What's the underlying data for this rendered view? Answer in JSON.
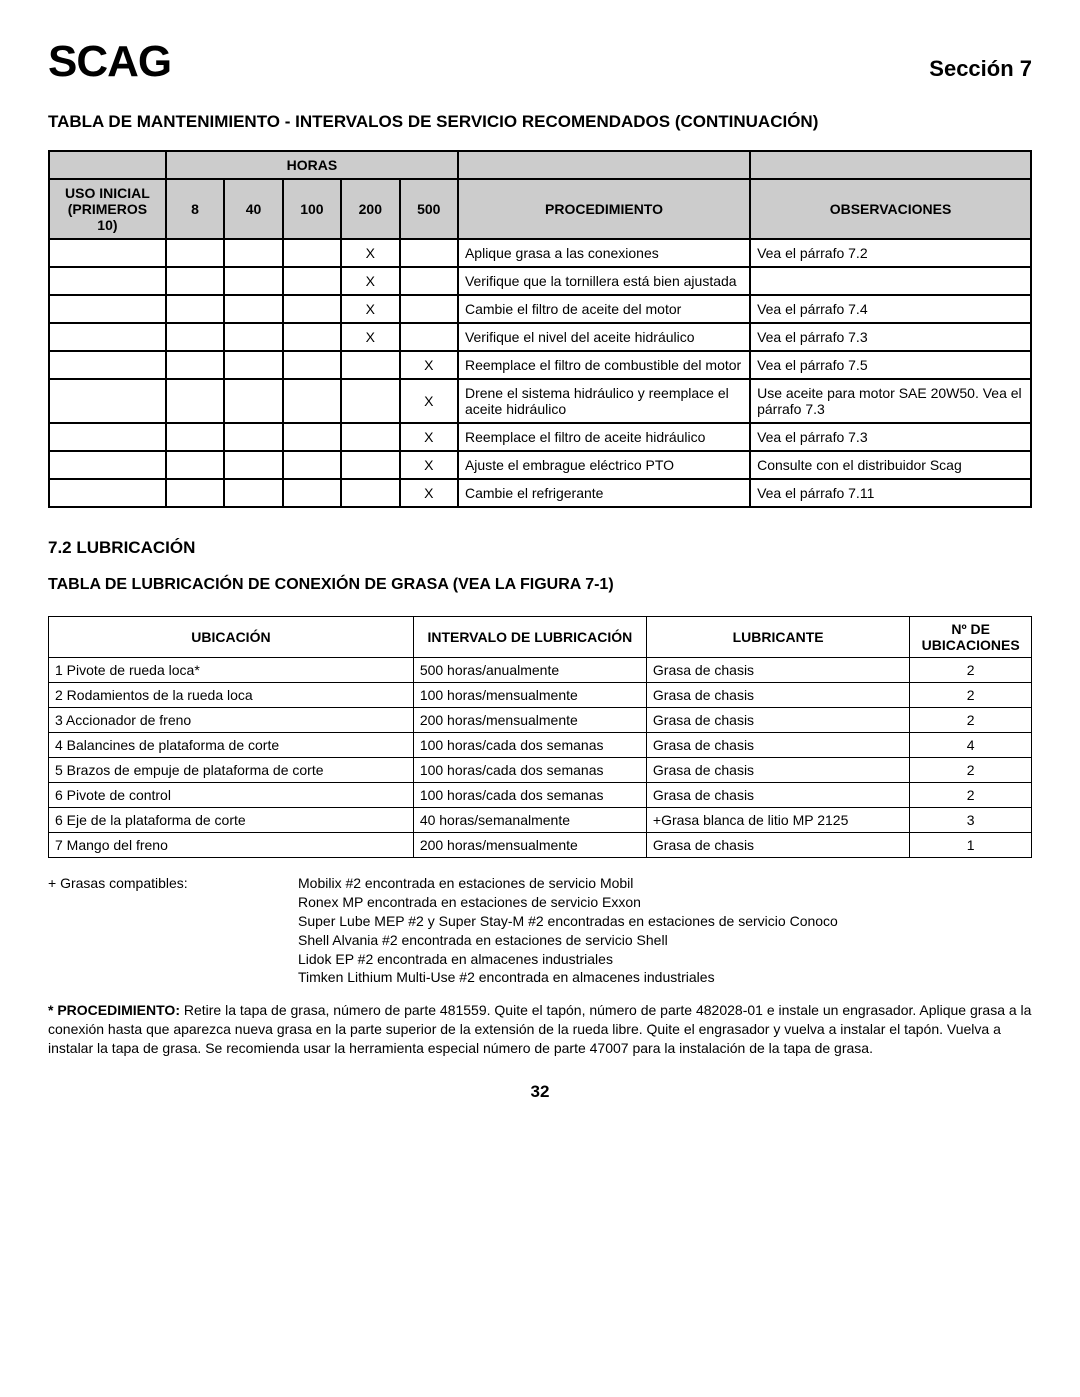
{
  "header": {
    "logo": "SCAG",
    "section": "Sección 7"
  },
  "title1": "TABLA DE MANTENIMIENTO - INTERVALOS DE SERVICIO RECOMENDADOS (CONTINUACIÓN)",
  "table1": {
    "head": {
      "horas": "HORAS",
      "uso": "USO INICIAL (PRIMEROS 10)",
      "h8": "8",
      "h40": "40",
      "h100": "100",
      "h200": "200",
      "h500": "500",
      "proc": "PROCEDIMIENTO",
      "obs": "OBSERVACIONES"
    },
    "rows": [
      {
        "h200": "X",
        "proc": "Aplique grasa a las conexiones",
        "obs": "Vea el párrafo 7.2"
      },
      {
        "h200": "X",
        "proc": "Verifique que la tornillera está bien ajustada",
        "obs": ""
      },
      {
        "h200": "X",
        "proc": "Cambie el filtro de aceite del motor",
        "obs": "Vea el párrafo 7.4"
      },
      {
        "h200": "X",
        "proc": "Verifique el nivel del aceite hidráulico",
        "obs": "Vea el párrafo 7.3"
      },
      {
        "h500": "X",
        "proc": "Reemplace el filtro de combustible del motor",
        "obs": "Vea el párrafo 7.5"
      },
      {
        "h500": "X",
        "proc": "Drene el sistema hidráulico y reemplace el aceite hidráulico",
        "obs": "Use aceite para motor SAE 20W50. Vea el párrafo 7.3"
      },
      {
        "h500": "X",
        "proc": "Reemplace el filtro de aceite hidráulico",
        "obs": "Vea el párrafo 7.3"
      },
      {
        "h500": "X",
        "proc": "Ajuste el embrague eléctrico PTO",
        "obs": "Consulte con el distribuidor Scag"
      },
      {
        "h500": "X",
        "proc": "Cambie el refrigerante",
        "obs": "Vea el párrafo 7.11"
      }
    ]
  },
  "section72": "7.2 LUBRICACIÓN",
  "title2": "TABLA DE LUBRICACIÓN DE CONEXIÓN DE GRASA (VEA LA FIGURA 7-1)",
  "table2": {
    "head": {
      "ubic": "UBICACIÓN",
      "interval": "INTERVALO DE LUBRICACIÓN",
      "lubr": "LUBRICANTE",
      "num": "Nº DE UBICACIONES"
    },
    "rows": [
      {
        "u": "1 Pivote de rueda loca*",
        "i": "500 horas/anualmente",
        "l": "Grasa de chasis",
        "n": "2"
      },
      {
        "u": "2 Rodamientos de la rueda loca",
        "i": "100 horas/mensualmente",
        "l": "Grasa de chasis",
        "n": "2"
      },
      {
        "u": "3 Accionador de freno",
        "i": "200 horas/mensualmente",
        "l": "Grasa de chasis",
        "n": "2"
      },
      {
        "u": "4 Balancines de plataforma de corte",
        "i": "100 horas/cada dos semanas",
        "l": "Grasa de chasis",
        "n": "4"
      },
      {
        "u": "5 Brazos de empuje de plataforma de corte",
        "i": "100 horas/cada dos semanas",
        "l": "Grasa de chasis",
        "n": "2"
      },
      {
        "u": "6 Pivote de control",
        "i": "100 horas/cada dos semanas",
        "l": "Grasa de chasis",
        "n": "2"
      },
      {
        "u": "6 Eje de la plataforma de corte",
        "i": "40 horas/semanalmente",
        "l": "+Grasa blanca de litio MP 2125",
        "n": "3"
      },
      {
        "u": "7 Mango del freno",
        "i": "200 horas/mensualmente",
        "l": "Grasa de chasis",
        "n": "1"
      }
    ]
  },
  "notes": {
    "label": "+ Grasas compatibles:",
    "lines": [
      "Mobilix #2 encontrada en estaciones de servicio Mobil",
      "Ronex MP encontrada en estaciones de servicio Exxon",
      "Super Lube MEP #2 y Super Stay-M #2 encontradas en estaciones de servicio Conoco",
      "Shell Alvania #2 encontrada en estaciones de servicio Shell",
      "Lidok EP #2 encontrada en almacenes industriales",
      "Timken Lithium Multi-Use #2 encontrada en almacenes industriales"
    ]
  },
  "proc_note": {
    "label": "* PROCEDIMIENTO:",
    "text": " Retire la tapa de grasa, número de parte 481559. Quite el tapón, número de parte 482028-01 e instale un engrasador. Aplique grasa a la conexión hasta que aparezca nueva grasa en la parte superior de la extensión de la rueda libre. Quite el engrasador y vuelva a instalar el tapón. Vuelva a instalar la tapa de grasa. Se recomienda usar la herramienta especial número de parte 47007 para la instalación de la tapa de grasa."
  },
  "page": "32"
}
